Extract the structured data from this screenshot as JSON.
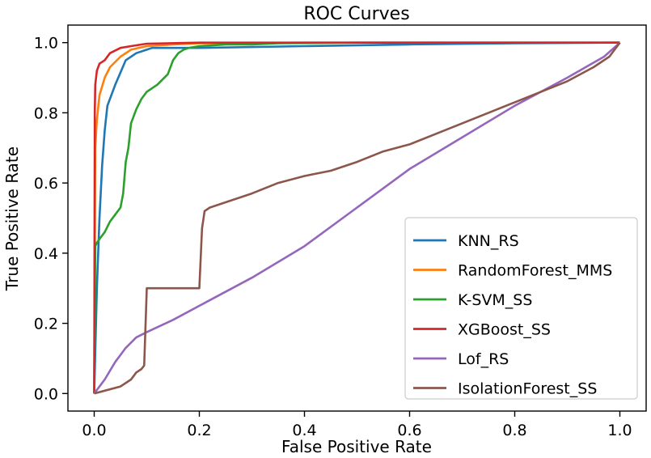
{
  "chart_data": {
    "type": "line",
    "title": "ROC Curves",
    "xlabel": "False Positive Rate",
    "ylabel": "True Positive Rate",
    "xlim": [
      -0.05,
      1.05
    ],
    "ylim": [
      -0.05,
      1.05
    ],
    "xticks": [
      0.0,
      0.2,
      0.4,
      0.6,
      0.8,
      1.0
    ],
    "yticks": [
      0.0,
      0.2,
      0.4,
      0.6,
      0.8,
      1.0
    ],
    "xtick_labels": [
      "0.0",
      "0.2",
      "0.4",
      "0.6",
      "0.8",
      "1.0"
    ],
    "ytick_labels": [
      "0.0",
      "0.2",
      "0.4",
      "0.6",
      "0.8",
      "1.0"
    ],
    "grid": false,
    "legend_position": "lower-right",
    "series": [
      {
        "name": "KNN_RS",
        "color": "#1f77b4",
        "x": [
          0.0,
          0.005,
          0.01,
          0.015,
          0.02,
          0.025,
          0.04,
          0.06,
          0.08,
          0.1,
          0.11,
          0.2,
          0.4,
          0.6,
          0.8,
          1.0
        ],
        "y": [
          0.0,
          0.3,
          0.5,
          0.65,
          0.75,
          0.82,
          0.88,
          0.95,
          0.97,
          0.98,
          0.985,
          0.985,
          0.99,
          0.995,
          0.998,
          1.0
        ]
      },
      {
        "name": "RandomForest_MMS",
        "color": "#ff7f0e",
        "x": [
          0.0,
          0.002,
          0.005,
          0.01,
          0.02,
          0.03,
          0.05,
          0.07,
          0.1,
          0.15,
          0.2,
          0.4,
          0.6,
          0.8,
          1.0
        ],
        "y": [
          0.0,
          0.7,
          0.78,
          0.85,
          0.9,
          0.93,
          0.96,
          0.98,
          0.99,
          0.995,
          0.998,
          1.0,
          1.0,
          1.0,
          1.0
        ]
      },
      {
        "name": "K-SVM_SS",
        "color": "#2ca02c",
        "x": [
          0.0,
          0.002,
          0.005,
          0.01,
          0.02,
          0.03,
          0.04,
          0.05,
          0.055,
          0.06,
          0.065,
          0.07,
          0.08,
          0.09,
          0.1,
          0.12,
          0.14,
          0.15,
          0.16,
          0.17,
          0.18,
          0.2,
          0.25,
          0.3,
          0.35,
          0.5,
          0.8,
          1.0
        ],
        "y": [
          0.0,
          0.42,
          0.43,
          0.44,
          0.46,
          0.49,
          0.51,
          0.53,
          0.57,
          0.66,
          0.7,
          0.77,
          0.81,
          0.84,
          0.86,
          0.88,
          0.91,
          0.95,
          0.97,
          0.98,
          0.985,
          0.99,
          0.995,
          0.995,
          0.998,
          1.0,
          1.0,
          1.0
        ]
      },
      {
        "name": "XGBoost_SS",
        "color": "#d62728",
        "x": [
          0.0,
          0.001,
          0.002,
          0.005,
          0.01,
          0.02,
          0.03,
          0.05,
          0.07,
          0.1,
          0.2,
          0.4,
          0.6,
          0.8,
          1.0
        ],
        "y": [
          0.0,
          0.8,
          0.88,
          0.92,
          0.94,
          0.95,
          0.97,
          0.985,
          0.99,
          0.997,
          1.0,
          1.0,
          1.0,
          1.0,
          1.0
        ]
      },
      {
        "name": "Lof_RS",
        "color": "#9467bd",
        "x": [
          0.0,
          0.02,
          0.04,
          0.06,
          0.08,
          0.1,
          0.15,
          0.2,
          0.3,
          0.4,
          0.5,
          0.6,
          0.7,
          0.8,
          0.9,
          0.97,
          1.0
        ],
        "y": [
          0.0,
          0.04,
          0.09,
          0.13,
          0.16,
          0.175,
          0.21,
          0.25,
          0.33,
          0.42,
          0.53,
          0.64,
          0.73,
          0.82,
          0.9,
          0.96,
          1.0
        ]
      },
      {
        "name": "IsolationForest_SS",
        "color": "#8c564b",
        "x": [
          0.0,
          0.05,
          0.07,
          0.08,
          0.09,
          0.095,
          0.1,
          0.1,
          0.2,
          0.205,
          0.21,
          0.22,
          0.3,
          0.35,
          0.4,
          0.45,
          0.5,
          0.55,
          0.6,
          0.65,
          0.7,
          0.75,
          0.8,
          0.85,
          0.9,
          0.95,
          0.98,
          1.0
        ],
        "y": [
          0.0,
          0.02,
          0.04,
          0.06,
          0.07,
          0.08,
          0.3,
          0.3,
          0.3,
          0.47,
          0.52,
          0.53,
          0.57,
          0.6,
          0.62,
          0.635,
          0.66,
          0.69,
          0.71,
          0.74,
          0.77,
          0.8,
          0.83,
          0.86,
          0.89,
          0.93,
          0.96,
          1.0
        ]
      }
    ]
  }
}
